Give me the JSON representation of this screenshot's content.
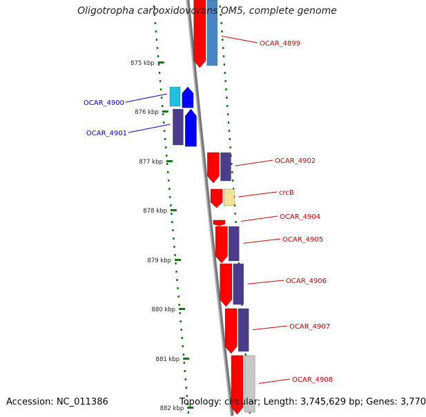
{
  "title": "Oligotropha carboxidovorans OM5, complete genome",
  "footer": {
    "accession": "Accession: NC_011386",
    "summary": "Topology: circular; Length: 3,745,629 bp; Genes: 3,770"
  },
  "ruler": {
    "ticks": [
      "875 kbp",
      "876 kbp",
      "877 kbp",
      "878 kbp",
      "879 kbp",
      "880 kbp",
      "881 kbp",
      "882 kbp"
    ]
  },
  "genes": [
    {
      "label": "OCAR_4899",
      "strand": "+",
      "color": "#cc0000"
    },
    {
      "label": "OCAR_4900",
      "strand": "-",
      "color": "#0000cc"
    },
    {
      "label": "OCAR_4901",
      "strand": "-",
      "color": "#0000cc"
    },
    {
      "label": "OCAR_4902",
      "strand": "+",
      "color": "#cc0000"
    },
    {
      "label": "crcB",
      "strand": "+",
      "color": "#cc0000"
    },
    {
      "label": "OCAR_4904",
      "strand": "+",
      "color": "#cc0000"
    },
    {
      "label": "OCAR_4905",
      "strand": "+",
      "color": "#cc0000"
    },
    {
      "label": "OCAR_4906",
      "strand": "+",
      "color": "#cc0000"
    },
    {
      "label": "OCAR_4907",
      "strand": "+",
      "color": "#cc0000"
    },
    {
      "label": "OCAR_4908",
      "strand": "+",
      "color": "#cc0000"
    }
  ],
  "colors": {
    "forward_cds": "#ff0000",
    "reverse_cds": "#0000ff",
    "cog_purple": "#4b3c8c",
    "cog_steelblue": "#4a86c0",
    "cog_yellow": "#f3e39a",
    "cog_cyan": "#22c0e0",
    "cog_grey": "#c8c8c8",
    "ruler_dots": "#117711",
    "backbone": "#777777"
  }
}
